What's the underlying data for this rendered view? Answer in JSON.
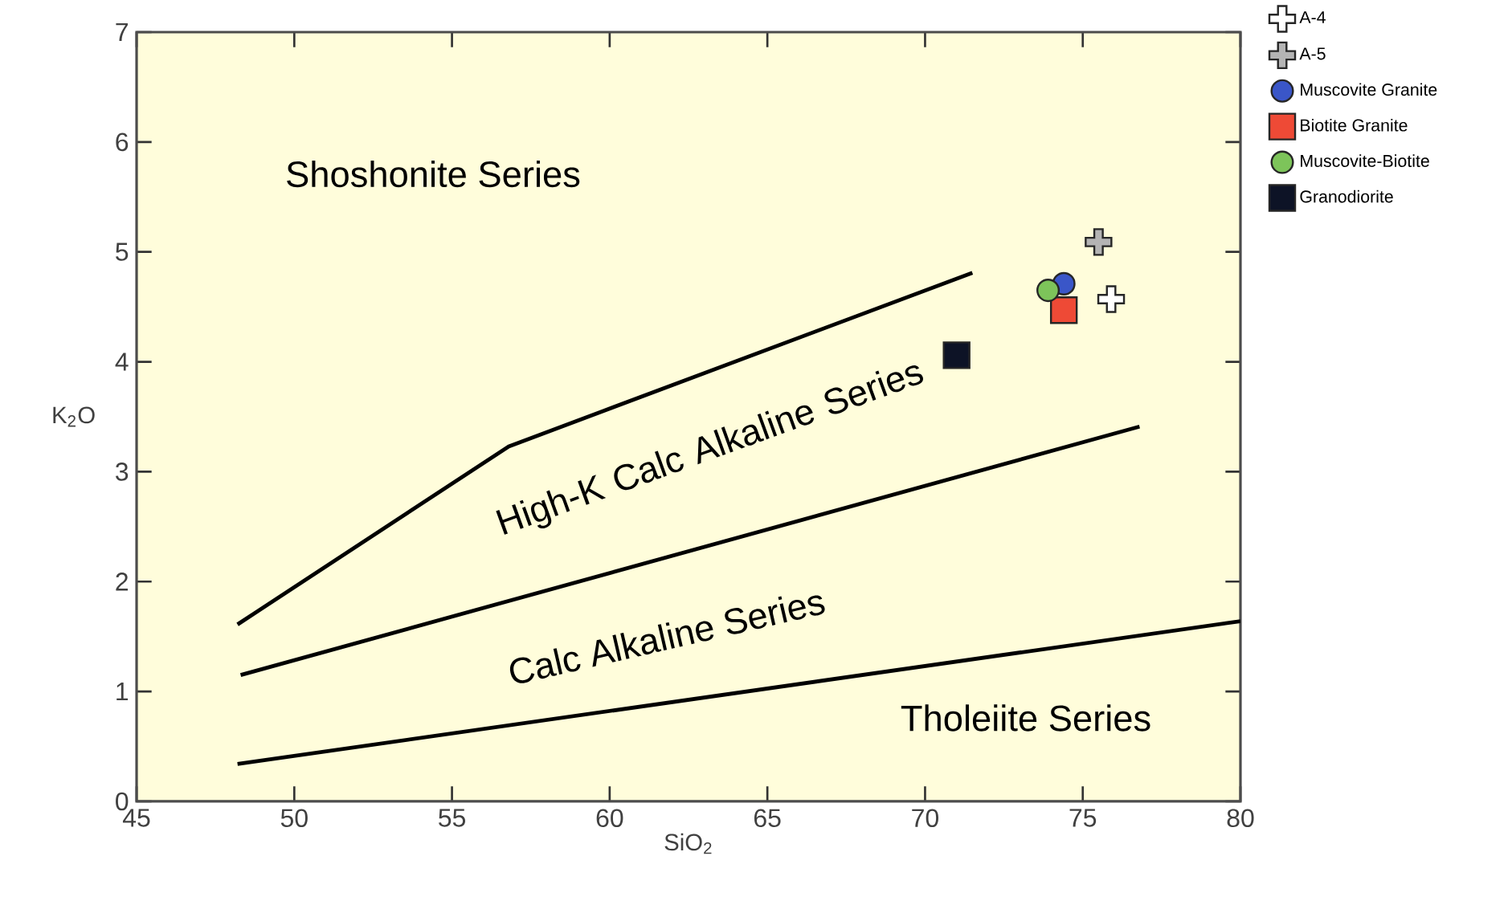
{
  "chart_data": {
    "type": "scatter",
    "xlabel": "SiO$_{2}$",
    "ylabel": "K$_{2}$O",
    "xlim": [
      45,
      80
    ],
    "ylim": [
      0,
      7
    ],
    "xticks": [
      45,
      50,
      55,
      60,
      65,
      70,
      75,
      80
    ],
    "yticks": [
      0,
      1,
      2,
      3,
      4,
      5,
      6,
      7
    ],
    "grid": false,
    "legend": "top right",
    "annotations": [
      "Shoshonite Series",
      "High-K Calc Alkaline Series",
      "Calc Alkaline Series",
      "Tholeiite Series"
    ],
    "series": [
      {
        "type": "line",
        "color": "#000000",
        "marker": "none",
        "x": [
          48.2,
          56.8,
          71.5
        ],
        "values": [
          1.61,
          3.23,
          4.81
        ]
      },
      {
        "type": "line",
        "color": "#000000",
        "marker": "none",
        "x": [
          48.3,
          76.8
        ],
        "values": [
          1.15,
          3.41
        ]
      },
      {
        "type": "line",
        "color": "#000000",
        "marker": "none",
        "x": [
          48.2,
          80
        ],
        "values": [
          0.34,
          1.64
        ]
      },
      {
        "name": "A-4",
        "color": "#ffffff",
        "marker": "cross",
        "x": [
          75.9
        ],
        "values": [
          4.57
        ]
      },
      {
        "name": "A-5",
        "color": "#b4b4b4",
        "marker": "cross",
        "x": [
          75.5
        ],
        "values": [
          5.09
        ]
      },
      {
        "name": "Muscovite Granite",
        "color": "#3a56c8",
        "marker": "circle",
        "x": [
          74.4
        ],
        "values": [
          4.71
        ]
      },
      {
        "name": "Biotite Granite",
        "color": "#ee4a36",
        "marker": "square",
        "x": [
          74.4
        ],
        "values": [
          4.47
        ]
      },
      {
        "name": "Muscovite-Biotite",
        "color": "#7dc45a",
        "marker": "circle",
        "x": [
          73.9
        ],
        "values": [
          4.65
        ]
      },
      {
        "name": "Granodiorite",
        "color": "#0d1326",
        "marker": "square",
        "x": [
          71.0
        ],
        "values": [
          4.06
        ]
      }
    ]
  }
}
